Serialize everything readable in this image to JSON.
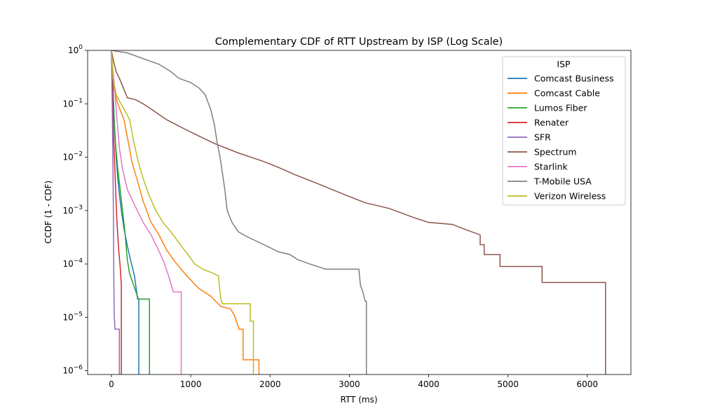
{
  "chart_data": {
    "type": "line",
    "title": "Complementary CDF of RTT Upstream by ISP (Log Scale)",
    "xlabel": "RTT (ms)",
    "ylabel": "CCDF (1 - CDF)",
    "xlim": [
      -300,
      6550
    ],
    "ylim": [
      8.5e-07,
      1
    ],
    "yscale": "log",
    "x_ticks": [
      0,
      1000,
      2000,
      3000,
      4000,
      5000,
      6000
    ],
    "y_ticks": [
      {
        "value": 1,
        "base": "10",
        "exp": "0"
      },
      {
        "value": 0.1,
        "base": "10",
        "exp": "−1"
      },
      {
        "value": 0.01,
        "base": "10",
        "exp": "−2"
      },
      {
        "value": 0.001,
        "base": "10",
        "exp": "−3"
      },
      {
        "value": 0.0001,
        "base": "10",
        "exp": "−4"
      },
      {
        "value": 1e-05,
        "base": "10",
        "exp": "−5"
      },
      {
        "value": 1e-06,
        "base": "10",
        "exp": "−6"
      }
    ],
    "grid": false,
    "legend": {
      "title": "ISP",
      "placement": "top-right"
    },
    "series": [
      {
        "name": "Comcast Business",
        "color": "#1f77b4",
        "points": [
          [
            0,
            1
          ],
          [
            15,
            0.3
          ],
          [
            30,
            0.08
          ],
          [
            45,
            0.025
          ],
          [
            60,
            0.01
          ],
          [
            80,
            0.004
          ],
          [
            100,
            0.002
          ],
          [
            130,
            0.0009
          ],
          [
            160,
            0.00045
          ],
          [
            200,
            0.00022
          ],
          [
            240,
            0.00012
          ],
          [
            290,
            6e-05
          ],
          [
            330,
            2.2e-05
          ],
          [
            345,
            2.2e-05
          ],
          [
            345,
            8e-07
          ]
        ]
      },
      {
        "name": "Comcast Cable",
        "color": "#ff7f0e",
        "points": [
          [
            0,
            1
          ],
          [
            30,
            0.2
          ],
          [
            80,
            0.1
          ],
          [
            120,
            0.07
          ],
          [
            160,
            0.05
          ],
          [
            210,
            0.02
          ],
          [
            260,
            0.008
          ],
          [
            330,
            0.0035
          ],
          [
            400,
            0.0015
          ],
          [
            500,
            0.0006
          ],
          [
            600,
            0.00035
          ],
          [
            700,
            0.00018
          ],
          [
            800,
            0.00011
          ],
          [
            950,
            6e-05
          ],
          [
            1100,
            3.5e-05
          ],
          [
            1250,
            2.5e-05
          ],
          [
            1380,
            1.6e-05
          ],
          [
            1500,
            1.45e-05
          ],
          [
            1550,
            1.1e-05
          ],
          [
            1610,
            6e-06
          ],
          [
            1660,
            6e-06
          ],
          [
            1660,
            1.6e-06
          ],
          [
            1860,
            1.6e-06
          ],
          [
            1860,
            8e-07
          ]
        ]
      },
      {
        "name": "Lumos Fiber",
        "color": "#2ca02c",
        "points": [
          [
            0,
            1
          ],
          [
            15,
            0.3
          ],
          [
            35,
            0.05
          ],
          [
            55,
            0.015
          ],
          [
            80,
            0.006
          ],
          [
            110,
            0.0025
          ],
          [
            140,
            0.001
          ],
          [
            170,
            0.0004
          ],
          [
            200,
            0.00012
          ],
          [
            230,
            6.5e-05
          ],
          [
            280,
            4e-05
          ],
          [
            340,
            2.2e-05
          ],
          [
            480,
            2.2e-05
          ],
          [
            480,
            8e-07
          ]
        ]
      },
      {
        "name": "Renater",
        "color": "#d62728",
        "points": [
          [
            0,
            1
          ],
          [
            12,
            0.2
          ],
          [
            25,
            0.03
          ],
          [
            40,
            0.008
          ],
          [
            55,
            0.002
          ],
          [
            70,
            0.0006
          ],
          [
            90,
            0.0002
          ],
          [
            110,
            9e-05
          ],
          [
            125,
            4e-05
          ],
          [
            125,
            8e-07
          ]
        ]
      },
      {
        "name": "SFR",
        "color": "#9467bd",
        "points": [
          [
            0,
            1
          ],
          [
            10,
            0.1
          ],
          [
            18,
            0.01
          ],
          [
            25,
            0.0008
          ],
          [
            30,
            7e-05
          ],
          [
            35,
            1.2e-05
          ],
          [
            45,
            6e-06
          ],
          [
            100,
            6e-06
          ],
          [
            100,
            8e-07
          ]
        ]
      },
      {
        "name": "Spectrum",
        "color": "#8c564b",
        "points": [
          [
            0,
            1
          ],
          [
            30,
            0.6
          ],
          [
            60,
            0.4
          ],
          [
            100,
            0.3
          ],
          [
            150,
            0.2
          ],
          [
            200,
            0.13
          ],
          [
            300,
            0.12
          ],
          [
            400,
            0.1
          ],
          [
            500,
            0.08
          ],
          [
            700,
            0.05
          ],
          [
            900,
            0.035
          ],
          [
            1100,
            0.025
          ],
          [
            1300,
            0.018
          ],
          [
            1600,
            0.012
          ],
          [
            1900,
            0.0085
          ],
          [
            2100,
            0.0065
          ],
          [
            2300,
            0.0048
          ],
          [
            2600,
            0.0032
          ],
          [
            2900,
            0.0021
          ],
          [
            3200,
            0.0014
          ],
          [
            3500,
            0.0011
          ],
          [
            3800,
            0.00075
          ],
          [
            4000,
            0.0006
          ],
          [
            4300,
            0.00055
          ],
          [
            4450,
            0.00045
          ],
          [
            4650,
            0.00035
          ],
          [
            4650,
            0.00023
          ],
          [
            4700,
            0.00023
          ],
          [
            4700,
            0.00015
          ],
          [
            4900,
            0.00015
          ],
          [
            4900,
            9e-05
          ],
          [
            5430,
            9e-05
          ],
          [
            5430,
            4.5e-05
          ],
          [
            6230,
            4.5e-05
          ],
          [
            6230,
            8e-07
          ]
        ]
      },
      {
        "name": "Starlink",
        "color": "#e377c2",
        "points": [
          [
            0,
            1
          ],
          [
            15,
            0.5
          ],
          [
            40,
            0.2
          ],
          [
            70,
            0.05
          ],
          [
            100,
            0.015
          ],
          [
            140,
            0.006
          ],
          [
            200,
            0.0025
          ],
          [
            300,
            0.0012
          ],
          [
            400,
            0.0006
          ],
          [
            500,
            0.00035
          ],
          [
            580,
            0.0002
          ],
          [
            660,
            0.00011
          ],
          [
            720,
            6e-05
          ],
          [
            780,
            3e-05
          ],
          [
            880,
            3e-05
          ],
          [
            880,
            8e-07
          ]
        ]
      },
      {
        "name": "T-Mobile USA",
        "color": "#7f7f7f",
        "points": [
          [
            0,
            1
          ],
          [
            200,
            0.9
          ],
          [
            400,
            0.7
          ],
          [
            600,
            0.55
          ],
          [
            750,
            0.4
          ],
          [
            850,
            0.3
          ],
          [
            1000,
            0.25
          ],
          [
            1100,
            0.2
          ],
          [
            1180,
            0.15
          ],
          [
            1250,
            0.08
          ],
          [
            1300,
            0.04
          ],
          [
            1330,
            0.02
          ],
          [
            1370,
            0.01
          ],
          [
            1400,
            0.005
          ],
          [
            1430,
            0.0025
          ],
          [
            1460,
            0.001
          ],
          [
            1520,
            0.0006
          ],
          [
            1600,
            0.0004
          ],
          [
            1700,
            0.00033
          ],
          [
            1800,
            0.00028
          ],
          [
            1950,
            0.00022
          ],
          [
            2100,
            0.00017
          ],
          [
            2250,
            0.00015
          ],
          [
            2350,
            0.00012
          ],
          [
            2500,
            0.0001
          ],
          [
            2700,
            8e-05
          ],
          [
            3000,
            8e-05
          ],
          [
            3120,
            8e-05
          ],
          [
            3140,
            4e-05
          ],
          [
            3170,
            3e-05
          ],
          [
            3200,
            2e-05
          ],
          [
            3215,
            2e-05
          ],
          [
            3215,
            8e-07
          ]
        ]
      },
      {
        "name": "Verizon Wireless",
        "color": "#bcbd22",
        "points": [
          [
            0,
            1
          ],
          [
            20,
            0.3
          ],
          [
            60,
            0.15
          ],
          [
            120,
            0.1
          ],
          [
            180,
            0.07
          ],
          [
            230,
            0.05
          ],
          [
            280,
            0.02
          ],
          [
            340,
            0.008
          ],
          [
            400,
            0.004
          ],
          [
            470,
            0.002
          ],
          [
            560,
            0.001
          ],
          [
            650,
            0.0006
          ],
          [
            750,
            0.0004
          ],
          [
            850,
            0.00025
          ],
          [
            950,
            0.00016
          ],
          [
            1050,
            0.0001
          ],
          [
            1150,
            8e-05
          ],
          [
            1250,
            7e-05
          ],
          [
            1350,
            6e-05
          ],
          [
            1360,
            4e-05
          ],
          [
            1380,
            2.2e-05
          ],
          [
            1400,
            1.8e-05
          ],
          [
            1750,
            1.8e-05
          ],
          [
            1750,
            8.5e-06
          ],
          [
            1790,
            8.5e-06
          ],
          [
            1790,
            8e-07
          ]
        ]
      }
    ]
  }
}
